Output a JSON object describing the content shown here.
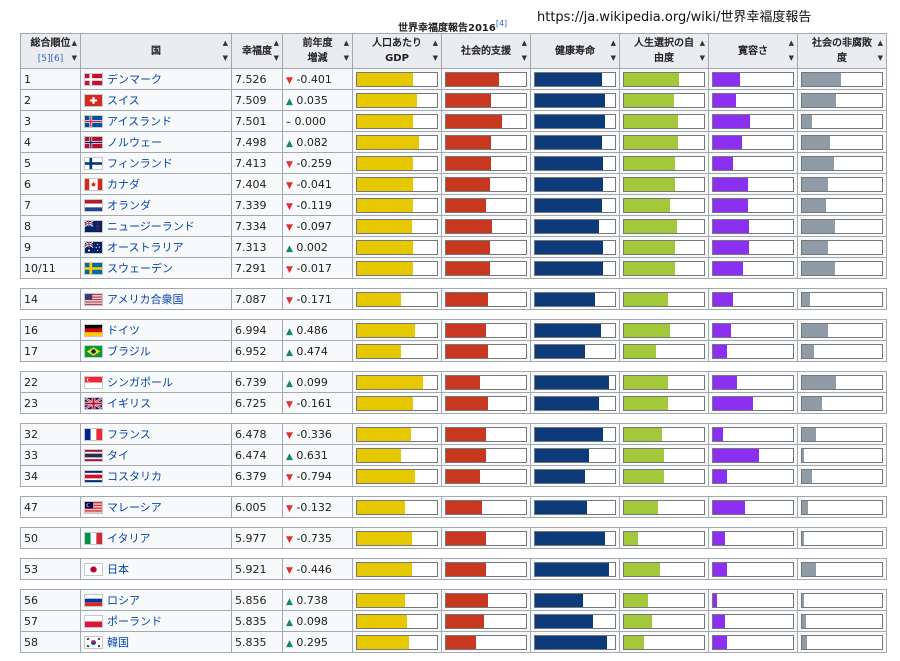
{
  "caption": "世界幸福度報告2016",
  "caption_ref": "[4]",
  "url": "https://ja.wikipedia.org/wiki/世界幸福度報告",
  "colors": {
    "gdp": "#e5c800",
    "social": "#c8371f",
    "health": "#0d3b7a",
    "freedom": "#a3c93a",
    "generosity": "#8b2ff0",
    "corruption": "#8f9ca8"
  },
  "headers": {
    "rank": "総合順位",
    "rank_ref": "[5][6]",
    "country": "国",
    "score": "幸福度",
    "change1": "前年度",
    "change2": "増減",
    "gdp1": "人口あたり",
    "gdp2": "GDP",
    "social": "社会的支援",
    "health": "健康寿命",
    "freedom1": "人生選択の自",
    "freedom2": "由度",
    "generosity": "寛容さ",
    "corruption1": "社会の非腐敗",
    "corruption2": "度"
  },
  "rows": [
    {
      "rank": "1",
      "country": "デンマーク",
      "flag": "dk",
      "score": "7.526",
      "dir": "down",
      "change": "-0.401",
      "bars": [
        0.7,
        0.66,
        0.84,
        0.69,
        0.34,
        0.49
      ]
    },
    {
      "rank": "2",
      "country": "スイス",
      "flag": "ch",
      "score": "7.509",
      "dir": "up",
      "change": "0.035",
      "bars": [
        0.75,
        0.56,
        0.88,
        0.62,
        0.29,
        0.42
      ]
    },
    {
      "rank": "3",
      "country": "アイスランド",
      "flag": "is",
      "score": "7.501",
      "dir": "eq",
      "change": "0.000",
      "bars": [
        0.7,
        0.7,
        0.87,
        0.67,
        0.46,
        0.13
      ]
    },
    {
      "rank": "4",
      "country": "ノルウェー",
      "flag": "no",
      "score": "7.498",
      "dir": "up",
      "change": "0.082",
      "bars": [
        0.77,
        0.56,
        0.84,
        0.68,
        0.36,
        0.35
      ]
    },
    {
      "rank": "5",
      "country": "フィンランド",
      "flag": "fi",
      "score": "7.413",
      "dir": "down",
      "change": "-0.259",
      "bars": [
        0.7,
        0.56,
        0.85,
        0.64,
        0.25,
        0.4
      ]
    },
    {
      "rank": "6",
      "country": "カナダ",
      "flag": "ca",
      "score": "7.404",
      "dir": "down",
      "change": "-0.041",
      "bars": [
        0.7,
        0.55,
        0.85,
        0.64,
        0.44,
        0.32
      ]
    },
    {
      "rank": "7",
      "country": "オランダ",
      "flag": "nl",
      "score": "7.339",
      "dir": "down",
      "change": "-0.119",
      "bars": [
        0.7,
        0.5,
        0.84,
        0.58,
        0.44,
        0.3
      ]
    },
    {
      "rank": "8",
      "country": "ニュージーランド",
      "flag": "nz",
      "score": "7.334",
      "dir": "down",
      "change": "-0.097",
      "bars": [
        0.69,
        0.57,
        0.8,
        0.66,
        0.45,
        0.41
      ]
    },
    {
      "rank": "9",
      "country": "オーストラリア",
      "flag": "au",
      "score": "7.313",
      "dir": "up",
      "change": "0.002",
      "bars": [
        0.7,
        0.55,
        0.85,
        0.64,
        0.45,
        0.33
      ]
    },
    {
      "rank": "10/11",
      "country": "スウェーデン",
      "flag": "se",
      "score": "7.291",
      "dir": "down",
      "change": "-0.017",
      "bars": [
        0.7,
        0.55,
        0.85,
        0.64,
        0.37,
        0.41
      ]
    },
    {
      "blank": true
    },
    {
      "rank": "14",
      "country": "アメリカ合衆国",
      "flag": "us",
      "score": "7.087",
      "dir": "down",
      "change": "-0.171",
      "bars": [
        0.55,
        0.53,
        0.75,
        0.55,
        0.25,
        0.1
      ]
    },
    {
      "blank": true
    },
    {
      "rank": "16",
      "country": "ドイツ",
      "flag": "de",
      "score": "6.994",
      "dir": "up",
      "change": "0.486",
      "bars": [
        0.72,
        0.5,
        0.82,
        0.57,
        0.22,
        0.32
      ]
    },
    {
      "rank": "17",
      "country": "ブラジル",
      "flag": "br",
      "score": "6.952",
      "dir": "up",
      "change": "0.474",
      "bars": [
        0.55,
        0.52,
        0.62,
        0.4,
        0.18,
        0.15
      ]
    },
    {
      "blank": true
    },
    {
      "rank": "22",
      "country": "シンガポール",
      "flag": "sg",
      "score": "6.739",
      "dir": "up",
      "change": "0.099",
      "bars": [
        0.82,
        0.42,
        0.92,
        0.55,
        0.3,
        0.42
      ]
    },
    {
      "rank": "23",
      "country": "イギリス",
      "flag": "gb",
      "score": "6.725",
      "dir": "down",
      "change": "-0.161",
      "bars": [
        0.7,
        0.52,
        0.8,
        0.55,
        0.5,
        0.25
      ]
    },
    {
      "blank": true
    },
    {
      "rank": "32",
      "country": "フランス",
      "flag": "fr",
      "score": "6.478",
      "dir": "down",
      "change": "-0.336",
      "bars": [
        0.68,
        0.5,
        0.85,
        0.48,
        0.12,
        0.18
      ]
    },
    {
      "rank": "33",
      "country": "タイ",
      "flag": "th",
      "score": "6.474",
      "dir": "up",
      "change": "0.631",
      "bars": [
        0.55,
        0.5,
        0.67,
        0.5,
        0.57,
        0.03
      ]
    },
    {
      "rank": "34",
      "country": "コスタリカ",
      "flag": "cr",
      "score": "6.379",
      "dir": "down",
      "change": "-0.794",
      "bars": [
        0.73,
        0.42,
        0.62,
        0.5,
        0.18,
        0.12
      ]
    },
    {
      "blank": true
    },
    {
      "rank": "47",
      "country": "マレーシア",
      "flag": "my",
      "score": "6.005",
      "dir": "down",
      "change": "-0.132",
      "bars": [
        0.6,
        0.45,
        0.65,
        0.42,
        0.4,
        0.08
      ]
    },
    {
      "blank": true
    },
    {
      "rank": "50",
      "country": "イタリア",
      "flag": "it",
      "score": "5.977",
      "dir": "down",
      "change": "-0.735",
      "bars": [
        0.69,
        0.5,
        0.87,
        0.18,
        0.15,
        0.03
      ]
    },
    {
      "blank": true
    },
    {
      "rank": "53",
      "country": "日本",
      "flag": "jp",
      "score": "5.921",
      "dir": "down",
      "change": "-0.446",
      "bars": [
        0.69,
        0.5,
        0.92,
        0.45,
        0.17,
        0.17
      ]
    },
    {
      "blank": true
    },
    {
      "rank": "56",
      "country": "ロシア",
      "flag": "ru",
      "score": "5.856",
      "dir": "up",
      "change": "0.738",
      "bars": [
        0.6,
        0.52,
        0.6,
        0.3,
        0.05,
        0.03
      ]
    },
    {
      "rank": "57",
      "country": "ポーランド",
      "flag": "pl",
      "score": "5.835",
      "dir": "up",
      "change": "0.098",
      "bars": [
        0.62,
        0.48,
        0.72,
        0.35,
        0.15,
        0.05
      ]
    },
    {
      "rank": "58",
      "country": "韓国",
      "flag": "kr",
      "score": "5.835",
      "dir": "up",
      "change": "0.295",
      "bars": [
        0.65,
        0.38,
        0.9,
        0.25,
        0.18,
        0.06
      ]
    }
  ]
}
